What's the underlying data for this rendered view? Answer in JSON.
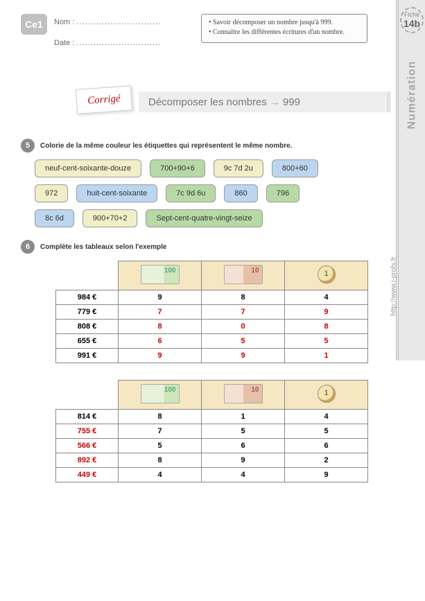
{
  "header": {
    "level_badge": "Ce1",
    "nom_label": "Nom :",
    "date_label": "Date :",
    "dots": "..............................",
    "fiche_label": "Fiche",
    "fiche_num": "14b",
    "sidebar_title": "Numération",
    "url": "http://www.i-profs.fr"
  },
  "objectives": {
    "o1": "Savoir décomposer un nombre jusqu'à 999.",
    "o2": "Connaître les différentes écritures d'un nombre."
  },
  "title": {
    "corrige": "Corrigé",
    "banner_left": "Décomposer les nombres",
    "banner_right": "999"
  },
  "ex5": {
    "num": "5",
    "text": "Colorie de la même couleur les étiquettes qui représentent le même nombre.",
    "tags": {
      "r1t1": "neuf-cent-soixante-douze",
      "r1t2": "700+90+6",
      "r1t3": "9c 7d 2u",
      "r1t4": "800+60",
      "r2t1": "972",
      "r2t2": "huit-cent-soixante",
      "r2t3": "7c 9d 6u",
      "r2t4": "860",
      "r2t5": "796",
      "r3t1": "8c 6d",
      "r3t2": "900+70+2",
      "r3t3": "Sept-cent-quatre-vingt-seize"
    }
  },
  "ex6": {
    "num": "6",
    "text": "Complète les tableaux selon l'exemple"
  },
  "table1": {
    "rows": [
      {
        "amt": "984 €",
        "h": "9",
        "t": "8",
        "u": "4",
        "example": true
      },
      {
        "amt": "779 €",
        "h": "7",
        "t": "7",
        "u": "9"
      },
      {
        "amt": "808 €",
        "h": "8",
        "t": "0",
        "u": "8"
      },
      {
        "amt": "655 €",
        "h": "6",
        "t": "5",
        "u": "5"
      },
      {
        "amt": "991 €",
        "h": "9",
        "t": "9",
        "u": "1"
      }
    ]
  },
  "table2": {
    "rows": [
      {
        "amt": "814 €",
        "h": "8",
        "t": "1",
        "u": "4",
        "example": true
      },
      {
        "amt": "755 €",
        "h": "7",
        "t": "5",
        "u": "5"
      },
      {
        "amt": "566 €",
        "h": "5",
        "t": "6",
        "u": "6"
      },
      {
        "amt": "892 €",
        "h": "8",
        "t": "9",
        "u": "2"
      },
      {
        "amt": "449 €",
        "h": "4",
        "t": "4",
        "u": "9"
      }
    ]
  }
}
